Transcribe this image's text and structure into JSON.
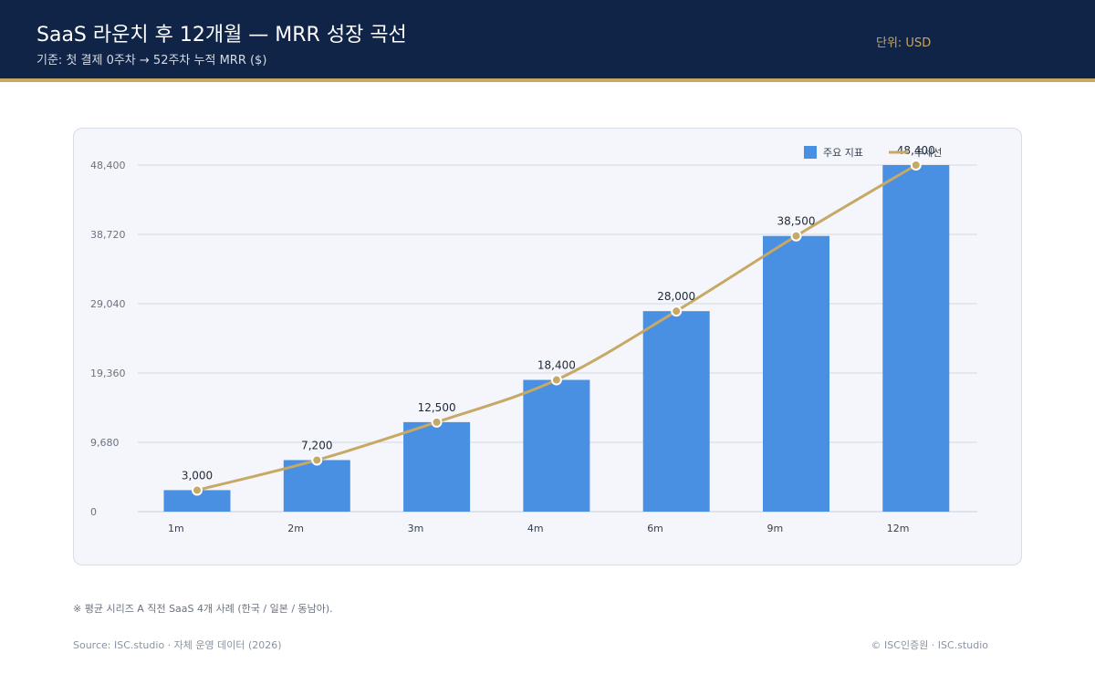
{
  "header": {
    "title": "SaaS 라운치 후 12개월 — MRR 성장 곡선",
    "subtitle": "기준: 첫 결제 0주차 → 52주차 누적 MRR ($)",
    "unit": "단위: USD"
  },
  "colors": {
    "header_bg": "#0f2447",
    "accent_gold": "#c8a865",
    "bar": "#4a90e2",
    "trend": "#c8a865"
  },
  "chart_data": {
    "type": "bar",
    "categories": [
      "1m",
      "2m",
      "3m",
      "4m",
      "6m",
      "9m",
      "12m"
    ],
    "series": [
      {
        "name": "주요 지표",
        "type": "bar",
        "values": [
          3000,
          7200,
          12500,
          18400,
          28000,
          38500,
          48400
        ]
      },
      {
        "name": "추세선",
        "type": "line",
        "values": [
          3000,
          7200,
          12500,
          18400,
          28000,
          38500,
          48400
        ]
      }
    ],
    "data_labels": [
      "3,000",
      "7,200",
      "12,500",
      "18,400",
      "28,000",
      "38,500",
      "48,400"
    ],
    "y_ticks": [
      0,
      9680,
      19360,
      29040,
      38720,
      48400
    ],
    "y_tick_labels": [
      "0",
      "9,680",
      "19,360",
      "29,040",
      "38,720",
      "48,400"
    ],
    "ylim": [
      0,
      48400
    ],
    "grid": true,
    "legend_position": "top-right"
  },
  "footer": {
    "note": "※ 평균 시리즈 A 직전 SaaS 4개 사례 (한국 / 일본 / 동남아).",
    "source": "Source: ISC.studio · 자체 운영 데이터 (2026)",
    "copyright": "© ISC인증원 · ISC.studio"
  }
}
